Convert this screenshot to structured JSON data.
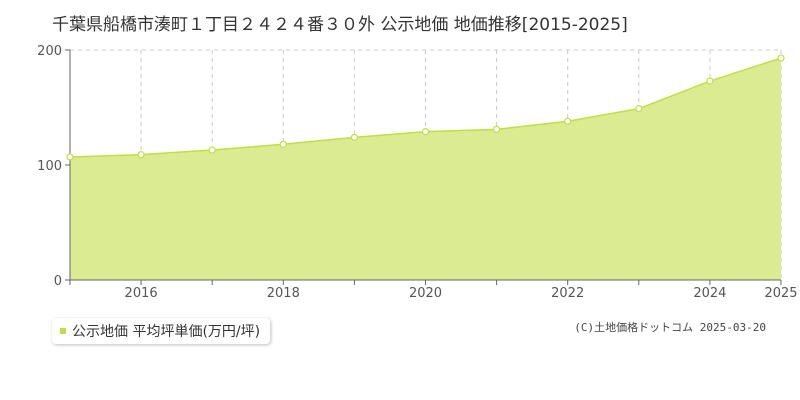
{
  "chart_data": {
    "type": "area",
    "title": "千葉県船橋市湊町１丁目２４２４番３０外 公示地価 地価推移[2015-2025]",
    "x": [
      2015,
      2016,
      2017,
      2018,
      2019,
      2020,
      2021,
      2022,
      2023,
      2024,
      2025
    ],
    "x_tick_labels": [
      "2016",
      "2018",
      "2020",
      "2022",
      "2024",
      "2025"
    ],
    "x_tick_values": [
      2016,
      2018,
      2020,
      2022,
      2024,
      2025
    ],
    "xlim": [
      2015,
      2025
    ],
    "y_tick_labels": [
      "0",
      "100",
      "200"
    ],
    "y_tick_values": [
      0,
      100,
      200
    ],
    "ylim": [
      0,
      200
    ],
    "grid": true,
    "legend_position": "bottom-left",
    "series": [
      {
        "name": "公示地価 平均坪単価(万円/坪)",
        "values": [
          107,
          109,
          113,
          118,
          124,
          129,
          131,
          138,
          149,
          173,
          193
        ],
        "color": "#bfdf45",
        "fill_color": "#dbeb91"
      }
    ]
  },
  "copyright": "(C)土地価格ドットコム 2025-03-20"
}
